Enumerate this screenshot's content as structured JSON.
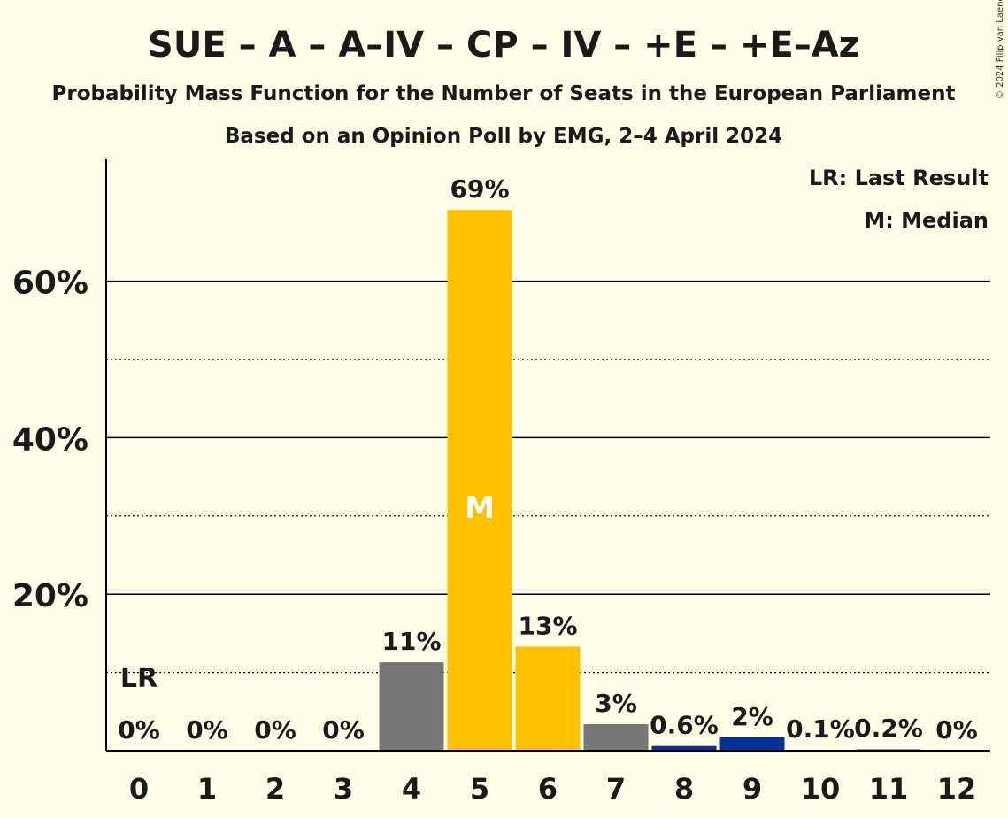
{
  "title": "SUE – A – A–IV – CP – IV – +E – +E–Az",
  "subtitle": "Probability Mass Function for the Number of Seats in the European Parliament",
  "subtitle2": "Based on an Opinion Poll by EMG, 2–4 April 2024",
  "copyright": "© 2024 Filip van Laenen",
  "legend": {
    "last_result": "LR: Last Result",
    "median": "M: Median"
  },
  "chart_data": {
    "type": "bar",
    "categories": [
      "0",
      "1",
      "2",
      "3",
      "4",
      "5",
      "6",
      "7",
      "8",
      "9",
      "10",
      "11",
      "12"
    ],
    "values": [
      0,
      0,
      0,
      0,
      11.3,
      69.1,
      13.3,
      3.4,
      0.6,
      1.7,
      0.1,
      0.2,
      0
    ],
    "value_labels": [
      "0%",
      "0%",
      "0%",
      "0%",
      "11%",
      "69%",
      "13%",
      "3%",
      "0.6%",
      "2%",
      "0.1%",
      "0.2%",
      "0%"
    ],
    "bar_colors": [
      "#777777",
      "#777777",
      "#777777",
      "#777777",
      "#777777",
      "#ffc000",
      "#ffc000",
      "#777777",
      "#003399",
      "#003399",
      "#777777",
      "#777777",
      "#777777"
    ],
    "ylim": [
      0,
      75
    ],
    "yticks_major": [
      20,
      40,
      60
    ],
    "ytick_labels": [
      "20%",
      "40%",
      "60%"
    ],
    "yticks_minor": [
      10,
      30,
      50
    ],
    "median_index": 5,
    "median_label": "M",
    "last_result_index": 0,
    "last_result_label": "LR",
    "grid": true,
    "legend_position": "top-right"
  }
}
